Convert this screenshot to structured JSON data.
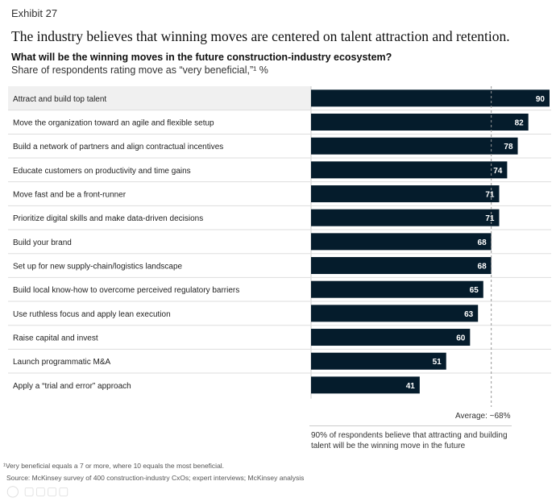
{
  "header": {
    "exhibit": "Exhibit 27",
    "title": "The industry believes that winning moves are centered on talent attraction and retention.",
    "question": "What will be the winning moves in the future construction-industry ecosystem?",
    "subtitle": "Share of respondents rating move as “very beneficial,”¹ %"
  },
  "chart_data": {
    "type": "bar",
    "orientation": "horizontal",
    "title": "What will be the winning moves in the future construction-industry ecosystem?",
    "ylabel": "Share of respondents rating move as “very beneficial,”¹ %",
    "categories": [
      "Attract and build top talent",
      "Move the organization toward an agile and flexible setup",
      "Build a network of partners and align contractual incentives",
      "Educate customers on productivity and time gains",
      "Move fast and be a front-runner",
      "Prioritize digital skills and make data-driven decisions",
      "Build your brand",
      "Set up for new supply-chain/logistics landscape",
      "Build local know-how to overcome perceived regulatory barriers",
      "Use ruthless focus and apply lean execution",
      "Raise capital and invest",
      "Launch programmatic M&A",
      "Apply a “trial and error” approach"
    ],
    "values": [
      90,
      82,
      78,
      74,
      71,
      71,
      68,
      68,
      65,
      63,
      60,
      51,
      41
    ],
    "xlim": [
      0,
      90
    ],
    "average": 68,
    "average_label": "Average: ~68%",
    "highlight_index": 0,
    "bar_color": "#051c2c",
    "highlight_row_color": "#f0f0f0"
  },
  "annotation": "90% of respondents believe that attracting and building talent will be the winning move in the future",
  "footnote": "¹Very beneficial equals a 7 or more, where 10 equals the most beneficial.",
  "source": "Source: McKinsey survey of 400 construction-industry CxOs; expert interviews; McKinsey analysis",
  "watermark": "大数跨境"
}
